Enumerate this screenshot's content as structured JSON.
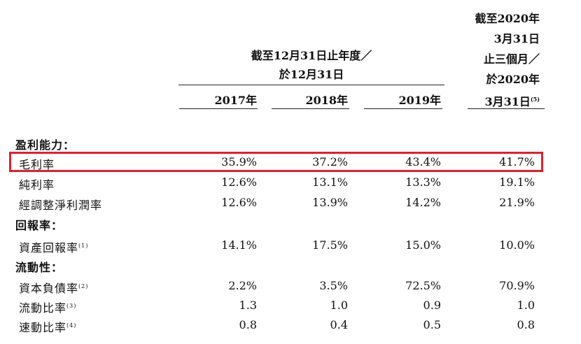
{
  "header": {
    "group_line1": "截至12月31日止年度／",
    "group_line2": "於12月31日",
    "quarter_line1": "截至2020年",
    "quarter_line2": "3月31日",
    "quarter_line3": "止三個月／",
    "quarter_line4": "於2020年",
    "quarter_line5": "3月31日",
    "quarter_note": "(5)",
    "years": [
      "2017年",
      "2018年",
      "2019年"
    ]
  },
  "rows": [
    {
      "label": "盈利能力：",
      "section": true
    },
    {
      "label": "毛利率",
      "values": [
        "35.9%",
        "37.2%",
        "43.4%",
        "41.7%"
      ],
      "highlighted": true
    },
    {
      "label": "純利率",
      "values": [
        "12.6%",
        "13.1%",
        "13.3%",
        "19.1%"
      ]
    },
    {
      "label": "經調整淨利潤率",
      "values": [
        "12.6%",
        "13.9%",
        "14.2%",
        "21.9%"
      ]
    },
    {
      "label": "回報率：",
      "section": true
    },
    {
      "label": "資產回報率",
      "note": "(1)",
      "values": [
        "14.1%",
        "17.5%",
        "15.0%",
        "10.0%"
      ]
    },
    {
      "label": "流動性：",
      "section": true
    },
    {
      "label": "資本負債率",
      "note": "(2)",
      "values": [
        "2.2%",
        "3.5%",
        "72.5%",
        "70.9%"
      ]
    },
    {
      "label": "流動比率",
      "note": "(3)",
      "values": [
        "1.3",
        "1.0",
        "0.9",
        "1.0"
      ]
    },
    {
      "label": "速動比率",
      "note": "(4)",
      "values": [
        "0.8",
        "0.4",
        "0.5",
        "0.8"
      ]
    }
  ],
  "colors": {
    "highlight_border": "#e02030"
  }
}
